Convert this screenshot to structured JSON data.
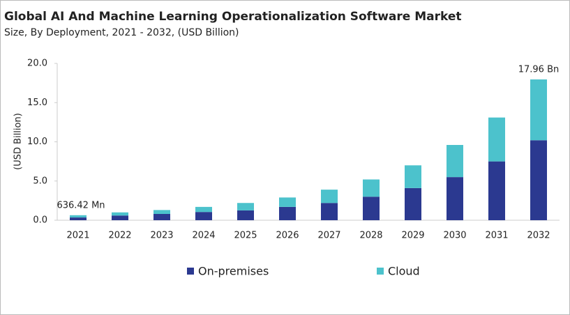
{
  "chart_data": {
    "type": "stacked_bar",
    "title": "Global AI And Machine Learning Operationalization Software Market",
    "subtitle": "Size, By Deployment, 2021 - 2032, (USD Billion)",
    "y_label": "(USD Billion)",
    "categories": [
      "2021",
      "2022",
      "2023",
      "2024",
      "2025",
      "2026",
      "2027",
      "2028",
      "2029",
      "2030",
      "2031",
      "2032"
    ],
    "series": [
      {
        "name": "On-premises",
        "color": "#2b3990",
        "values": [
          0.35,
          0.6,
          0.8,
          1.05,
          1.25,
          1.7,
          2.2,
          3.0,
          4.1,
          5.5,
          7.5,
          10.2
        ]
      },
      {
        "name": "Cloud",
        "color": "#4cc2cc",
        "values": [
          0.29,
          0.4,
          0.5,
          0.65,
          0.95,
          1.2,
          1.7,
          2.2,
          2.9,
          4.1,
          5.6,
          7.76
        ]
      }
    ],
    "annotations": [
      "636.42 Mn",
      "17.96 Bn"
    ],
    "ylim": [
      0,
      20
    ],
    "yticks": [
      {
        "value": 0,
        "label": "0.0"
      },
      {
        "value": 5,
        "label": "5.0"
      },
      {
        "value": 10,
        "label": "10.0"
      },
      {
        "value": 15,
        "label": "15.0"
      },
      {
        "value": 20,
        "label": "20.0"
      }
    ],
    "legend": "bottom"
  }
}
